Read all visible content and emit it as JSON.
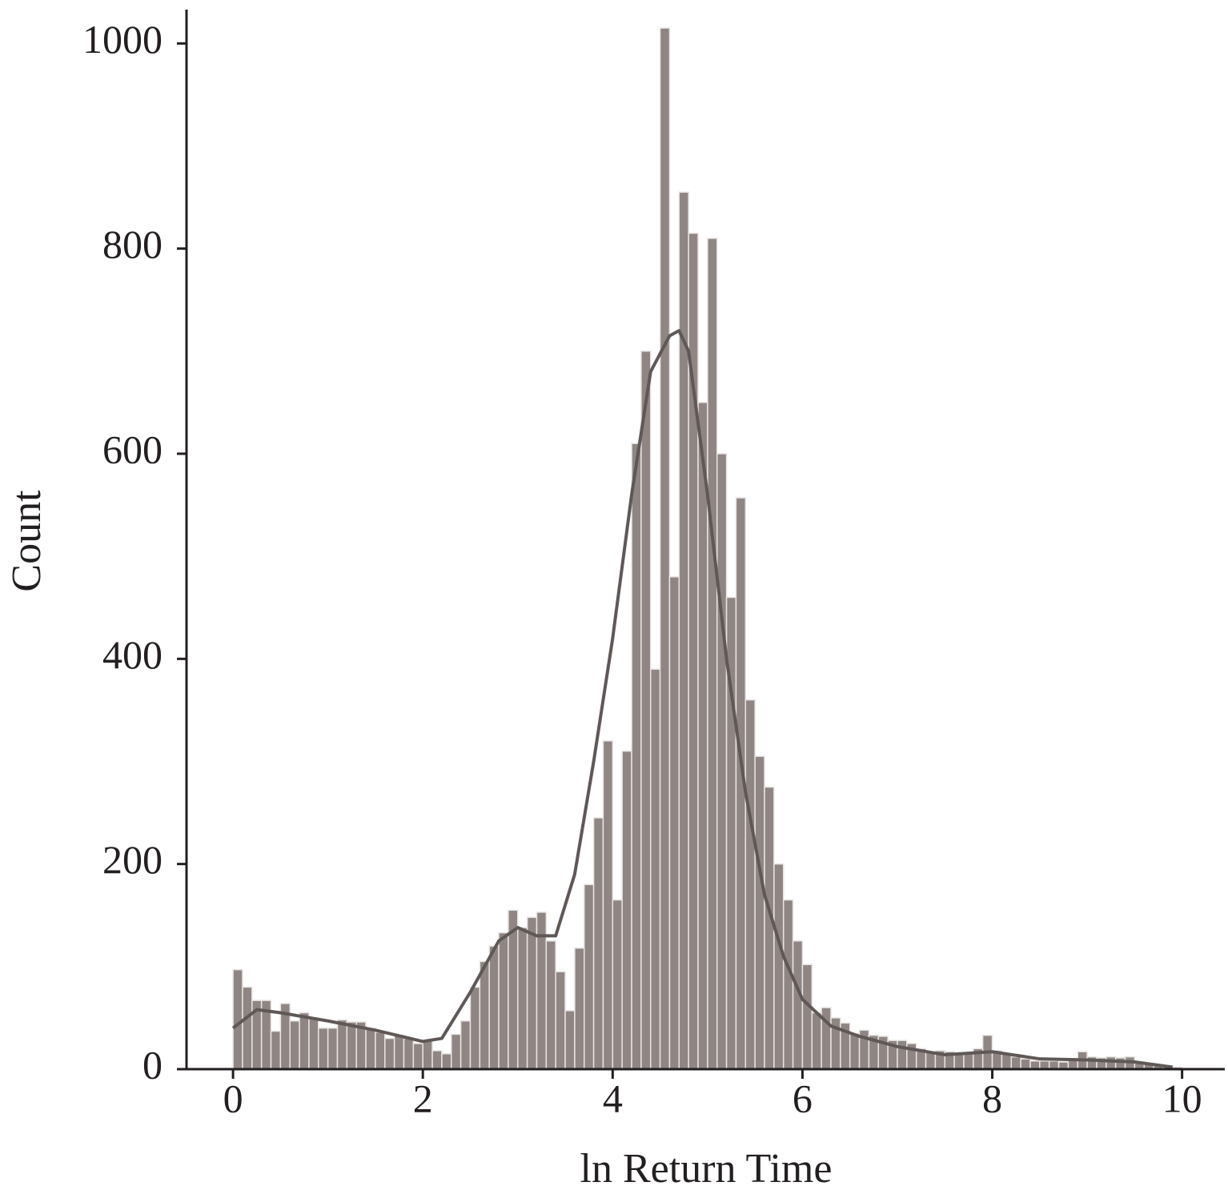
{
  "chart_data": {
    "type": "histogram",
    "x_label": "ln Return Time",
    "y_label": "Count",
    "color": "#8f8683",
    "edge_color": "#e8e4e2",
    "bins": [
      0,
      0.1,
      0.2,
      0.3,
      0.4,
      0.5,
      0.6,
      0.7,
      0.8,
      0.9,
      1.0,
      1.1,
      1.2,
      1.3,
      1.4,
      1.5,
      1.6,
      1.7,
      1.8,
      1.9,
      2.0,
      2.1,
      2.2,
      2.3,
      2.4,
      2.5,
      2.6,
      2.7,
      2.8,
      2.9,
      3.0,
      3.1,
      3.2,
      3.3,
      3.4,
      3.5,
      3.6,
      3.7,
      3.8,
      3.9,
      4.0,
      4.1,
      4.2,
      4.3,
      4.4,
      4.5,
      4.6,
      4.7,
      4.8,
      4.9,
      5.0,
      5.1,
      5.2,
      5.3,
      5.4,
      5.5,
      5.6,
      5.7,
      5.8,
      5.9,
      6.0,
      6.1,
      6.2,
      6.3,
      6.4,
      6.5,
      6.6,
      6.7,
      6.8,
      6.9,
      7.0,
      7.1,
      7.2,
      7.3,
      7.4,
      7.5,
      7.6,
      7.7,
      7.8,
      7.9,
      8.0,
      8.1,
      8.2,
      8.3,
      8.4,
      8.5,
      8.6,
      8.7,
      8.8,
      8.9,
      9.0,
      9.1,
      9.2,
      9.3,
      9.4,
      9.5,
      9.6,
      9.7,
      9.8,
      9.9,
      10.0
    ],
    "counts": [
      97,
      80,
      67,
      67,
      37,
      64,
      47,
      55,
      50,
      40,
      40,
      48,
      46,
      46,
      40,
      36,
      30,
      33,
      30,
      25,
      28,
      18,
      15,
      34,
      47,
      80,
      105,
      120,
      133,
      155,
      138,
      148,
      153,
      125,
      95,
      57,
      118,
      180,
      245,
      320,
      165,
      310,
      610,
      700,
      390,
      1015,
      480,
      855,
      815,
      650,
      810,
      600,
      460,
      557,
      360,
      305,
      275,
      200,
      165,
      125,
      102,
      55,
      60,
      50,
      45,
      35,
      38,
      33,
      32,
      28,
      28,
      25,
      20,
      17,
      18,
      17,
      15,
      16,
      20,
      33,
      18,
      15,
      12,
      10,
      8,
      8,
      8,
      7,
      9,
      17,
      12,
      11,
      12,
      11,
      12,
      7,
      5,
      4,
      3,
      2
    ],
    "kde": {
      "color": "#5f5856",
      "x": [
        0,
        0.25,
        0.5,
        1,
        1.5,
        2,
        2.2,
        2.5,
        2.8,
        3.0,
        3.2,
        3.4,
        3.6,
        3.8,
        4.0,
        4.2,
        4.4,
        4.6,
        4.7,
        4.8,
        5.0,
        5.2,
        5.4,
        5.6,
        5.8,
        6.0,
        6.3,
        6.6,
        7.0,
        7.5,
        8.0,
        8.5,
        9.0,
        9.5,
        9.9
      ],
      "values": [
        40,
        58,
        55,
        47,
        38,
        27,
        30,
        75,
        125,
        138,
        130,
        130,
        190,
        300,
        420,
        560,
        680,
        715,
        720,
        700,
        560,
        400,
        270,
        170,
        110,
        68,
        42,
        32,
        22,
        14,
        17,
        10,
        9,
        7,
        2
      ]
    },
    "xlim": [
      -0.49,
      10.45
    ],
    "ylim": [
      0,
      1033
    ],
    "xticks": [
      0,
      2,
      4,
      6,
      8,
      10
    ],
    "yticks": [
      0,
      200,
      400,
      600,
      800,
      1000
    ]
  }
}
